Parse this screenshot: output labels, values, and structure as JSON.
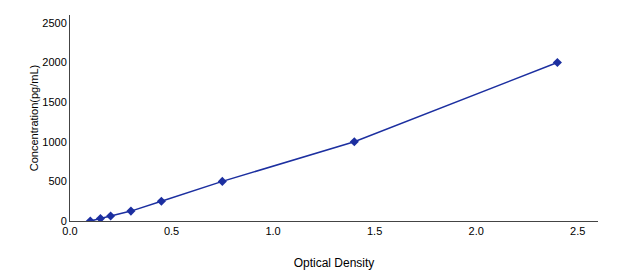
{
  "chart_data": {
    "type": "line",
    "x": [
      0.1,
      0.15,
      0.2,
      0.3,
      0.45,
      0.75,
      1.4,
      2.4
    ],
    "values": [
      0,
      31.25,
      62.5,
      125,
      250,
      500,
      1000,
      2000
    ],
    "color": "#1C2FA0",
    "marker": "diamond",
    "xlabel": "Optical Density",
    "ylabel": "Concentration(pg/mL)",
    "xlim": [
      0,
      2.6
    ],
    "ylim": [
      0,
      2600
    ],
    "xticks": [
      {
        "value": 0,
        "label": "0.0"
      },
      0.5,
      {
        "value": 1,
        "label": "1.0"
      },
      1.5,
      {
        "value": 2,
        "label": "2.0"
      },
      2.5
    ],
    "yticks": [
      0,
      500,
      1000,
      1500,
      2000,
      2500
    ],
    "grid": false
  }
}
